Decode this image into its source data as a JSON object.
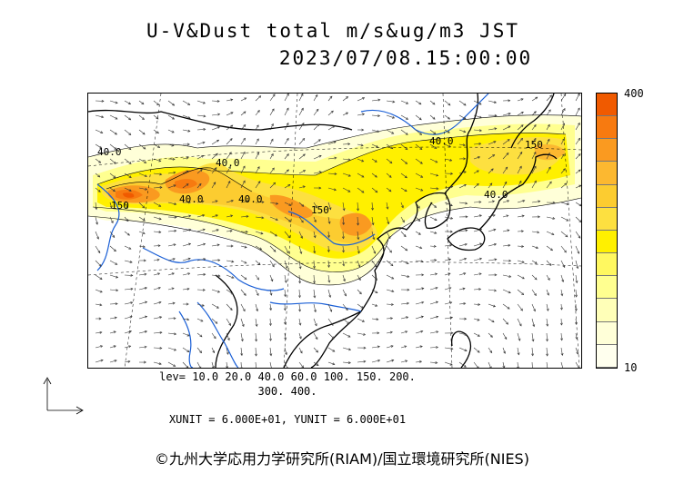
{
  "title_line1": "U-V&Dust total m/s&ug/m3 JST",
  "title_line2": "2023/07/08.15:00:00",
  "colorbar": {
    "max_label": "400",
    "min_label": "10",
    "colors": [
      "#f05a00",
      "#f77a10",
      "#fa9a20",
      "#fcb830",
      "#fccc30",
      "#fde040",
      "#fff000",
      "#fff860",
      "#ffff90",
      "#ffffb8",
      "#ffffd8",
      "#ffffee"
    ]
  },
  "contour_labels": [
    "40.0",
    "40.0",
    "150",
    "40.0",
    "150",
    "40.0",
    "150",
    "40.0",
    "40.0"
  ],
  "lev_line1": "lev= 10.0 20.0 40.0 60.0 100. 150. 200.",
  "lev_line2": "300. 400.",
  "units": "XUNIT = 6.000E+01, YUNIT = 6.000E+01",
  "credit": "©九州大学応用力学研究所(RIAM)/国立環境研究所(NIES)",
  "colors": {
    "coast": "#000000",
    "river": "#1a5fd6",
    "ocean": "#ffffff"
  }
}
